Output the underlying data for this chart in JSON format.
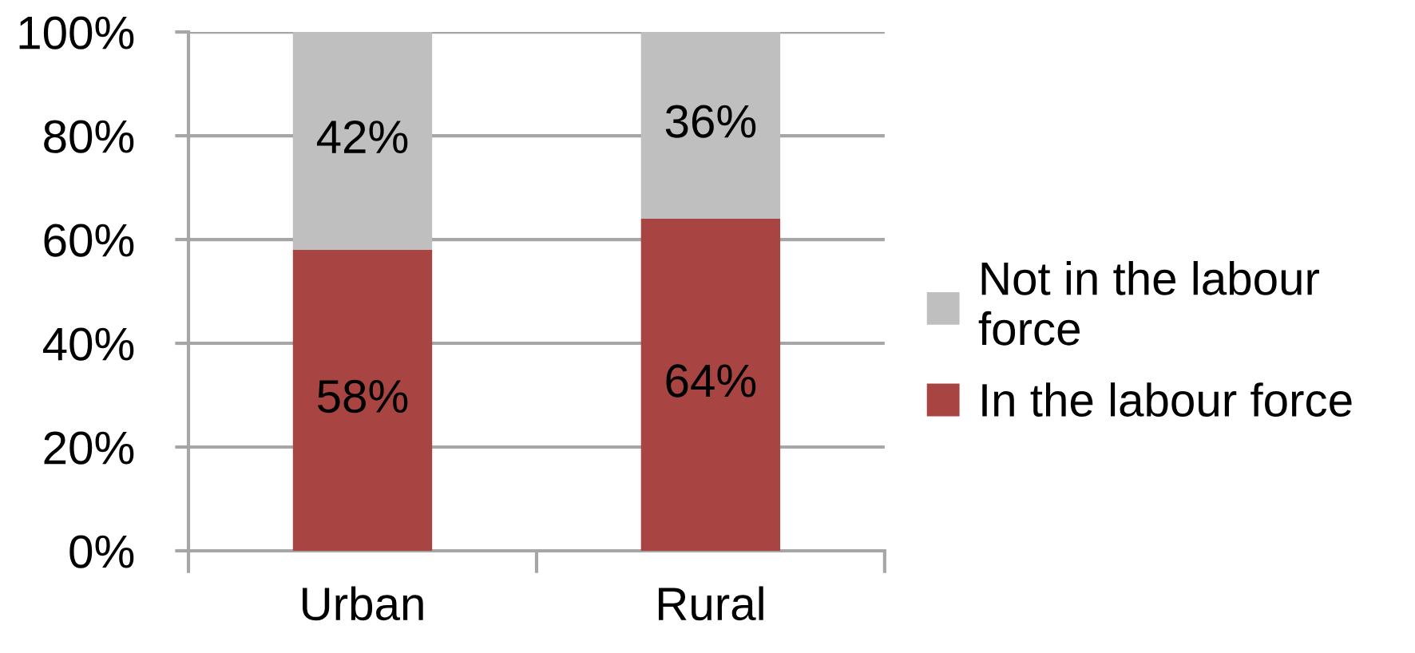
{
  "chart_data": {
    "type": "bar",
    "stacked": true,
    "categories": [
      "Urban",
      "Rural"
    ],
    "series": [
      {
        "name": "In the labour force",
        "color": "#a84542",
        "values": [
          58,
          64
        ],
        "value_labels": [
          "58%",
          "64%"
        ]
      },
      {
        "name": "Not in the labour force",
        "color": "#bfbfbf",
        "values": [
          42,
          36
        ],
        "value_labels": [
          "42%",
          "36%"
        ]
      }
    ],
    "ylim": [
      0,
      100
    ],
    "yticks": [
      {
        "value": 0,
        "label": "0%"
      },
      {
        "value": 20,
        "label": "20%"
      },
      {
        "value": 40,
        "label": "40%"
      },
      {
        "value": 60,
        "label": "60%"
      },
      {
        "value": 80,
        "label": "80%"
      },
      {
        "value": 100,
        "label": "100%"
      }
    ],
    "grid": "y",
    "legend": "right"
  }
}
